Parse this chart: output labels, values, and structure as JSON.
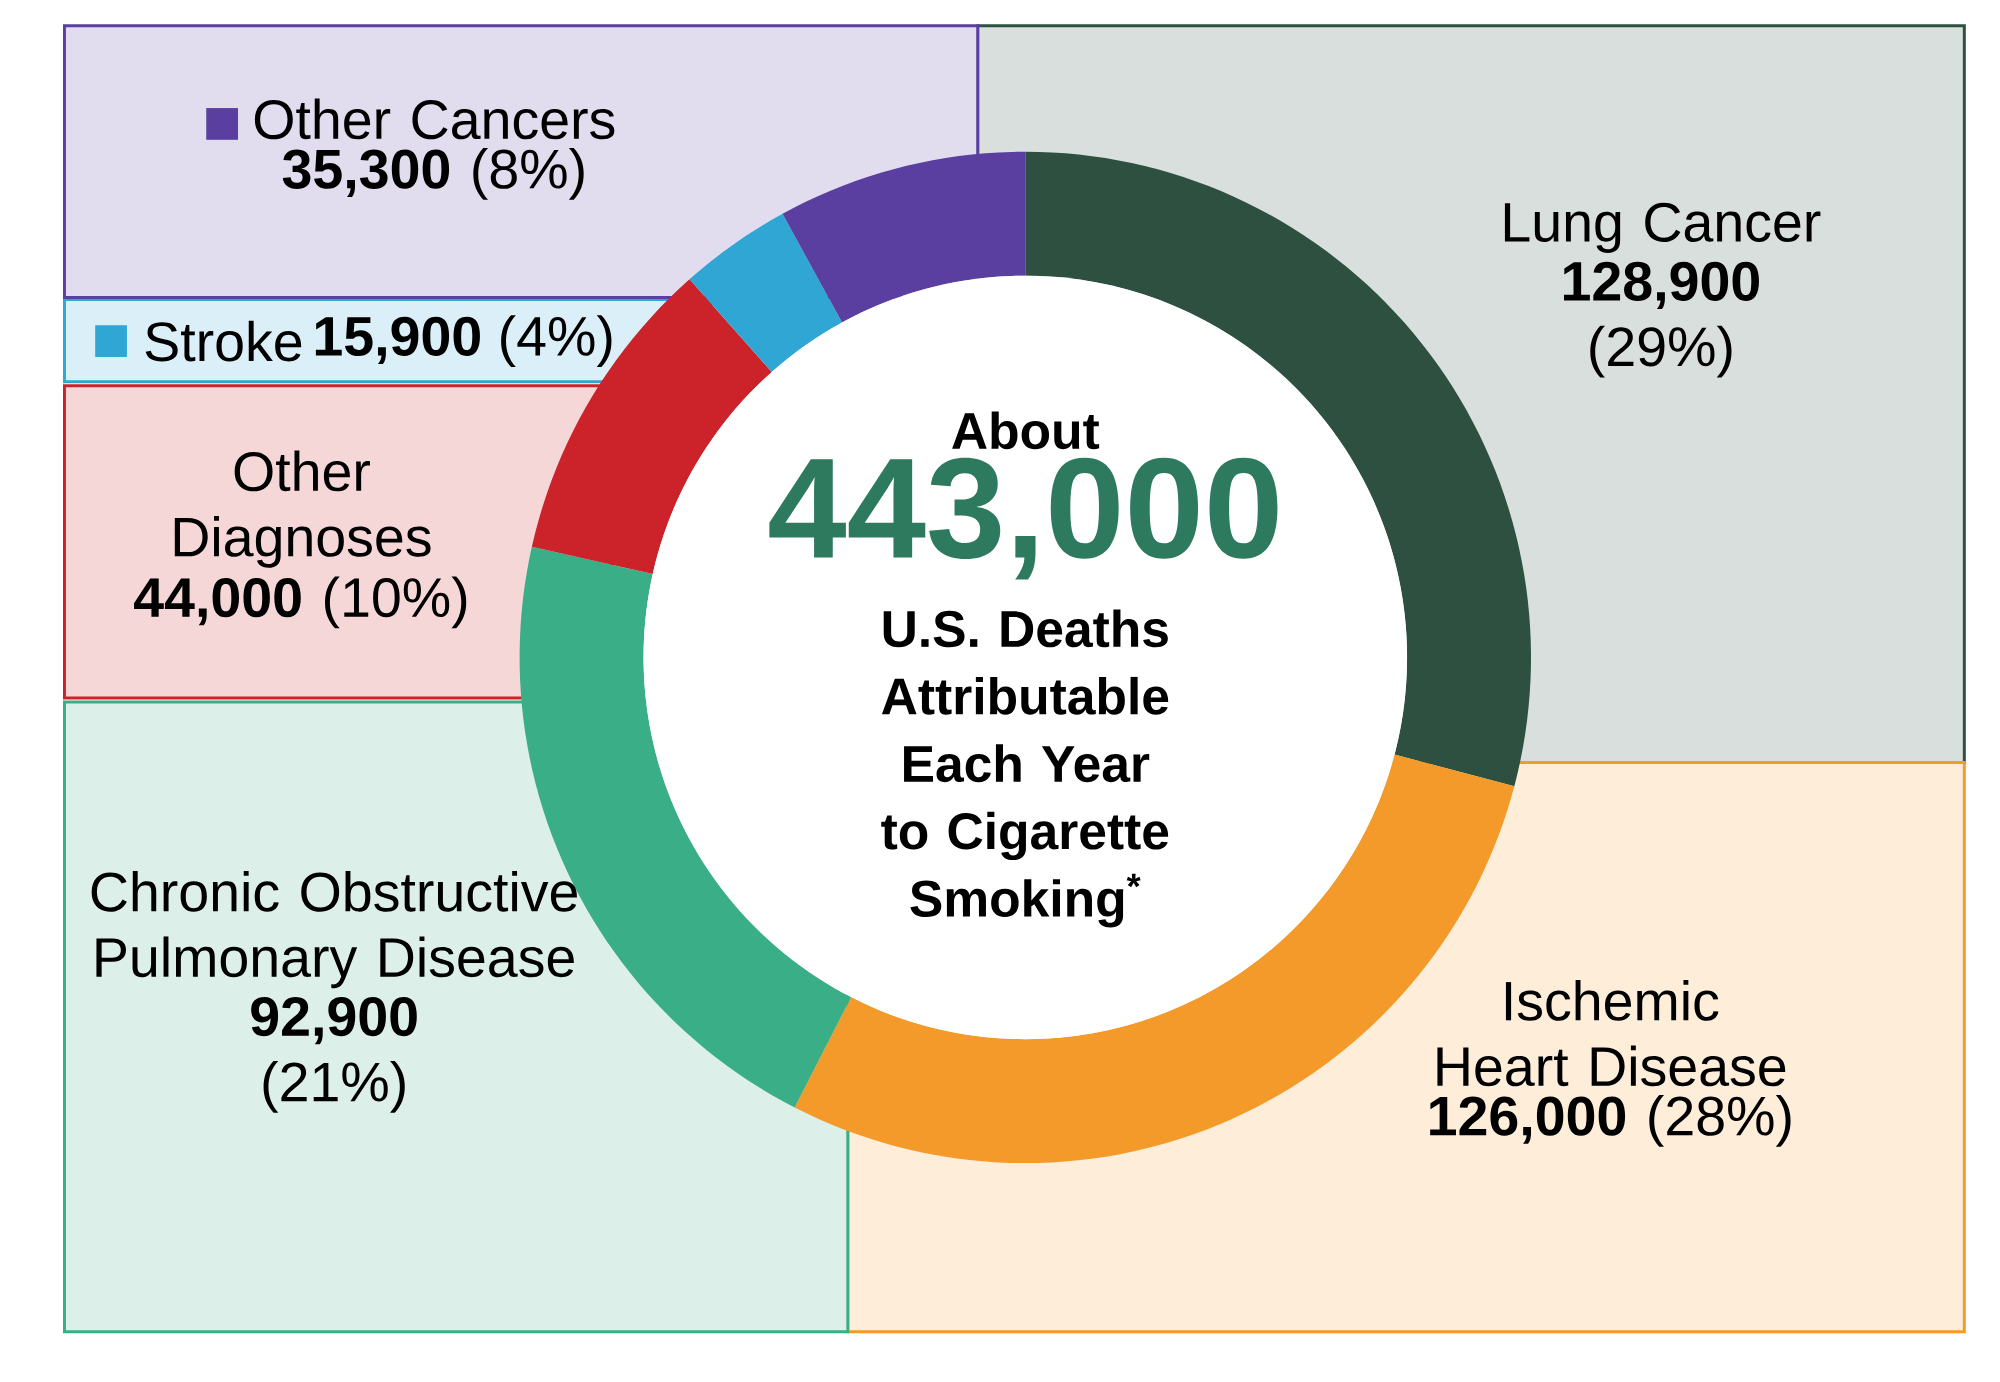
{
  "chart_data": {
    "type": "donut",
    "categories": [
      "Lung Cancer",
      "Ischemic Heart Disease",
      "Chronic Obstructive Pulmonary Disease",
      "Other Diagnoses",
      "Stroke",
      "Other Cancers"
    ],
    "values": [
      128900,
      126000,
      92900,
      44000,
      15900,
      35300
    ],
    "colors": [
      "#2d5040",
      "#f39a2a",
      "#3aae86",
      "#cc2229",
      "#2fa6d4",
      "#5a3ea0"
    ],
    "value_labels": [
      "**128,900** (29%)",
      "**126,000** (28%)",
      "**92,900** (21%)",
      "**44,000** (10%)",
      "**15,900** (4%)",
      "**35,300** (8%)"
    ],
    "legend": "top left",
    "annotations": [
      "About",
      "443,000",
      "U.S. Deaths Attributable Each Year to Cigarette Smoking$^{*}$"
    ]
  }
}
